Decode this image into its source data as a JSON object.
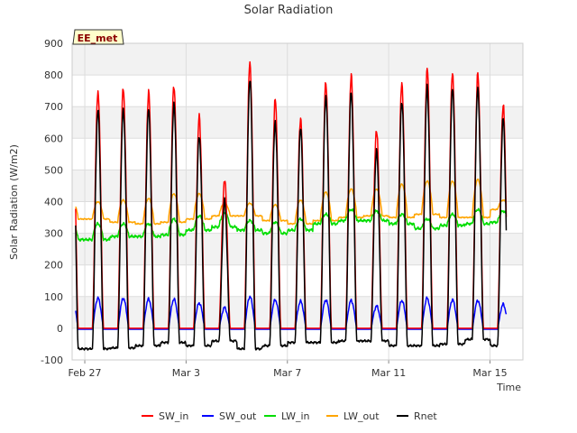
{
  "chart_data": {
    "type": "line",
    "title": "Solar Radiation",
    "xlabel": "Time",
    "ylabel": "Solar Radiation (W/m2)",
    "station_label": "EE_met",
    "xlim_days": [
      -0.5,
      17.3
    ],
    "ylim": [
      -100,
      900
    ],
    "yticks": [
      -100,
      0,
      100,
      200,
      300,
      400,
      500,
      600,
      700,
      800,
      900
    ],
    "xticks": [
      {
        "day": 0,
        "label": "Feb 27"
      },
      {
        "day": 4,
        "label": "Mar 3"
      },
      {
        "day": 8,
        "label": "Mar 7"
      },
      {
        "day": 12,
        "label": "Mar 11"
      },
      {
        "day": 16,
        "label": "Mar 15"
      }
    ],
    "grid": true,
    "legend_position": "bottom",
    "colors": {
      "SW_in": "#ff0000",
      "SW_out": "#0000ff",
      "LW_in": "#00dd00",
      "LW_out": "#ffa500",
      "Rnet": "#000000"
    },
    "series": [
      {
        "name": "SW_in",
        "daily_peak": [
          750,
          755,
          745,
          770,
          665,
          470,
          840,
          720,
          665,
          775,
          795,
          630,
          770,
          820,
          810,
          800,
          705
        ]
      },
      {
        "name": "SW_out",
        "daily_peak": [
          95,
          95,
          92,
          92,
          80,
          65,
          100,
          90,
          85,
          90,
          88,
          70,
          88,
          95,
          90,
          88,
          75
        ]
      },
      {
        "name": "LW_in",
        "night_level": [
          280,
          290,
          290,
          295,
          310,
          320,
          310,
          300,
          310,
          330,
          340,
          340,
          330,
          315,
          325,
          330,
          335
        ],
        "day_level": [
          330,
          330,
          330,
          345,
          355,
          365,
          340,
          335,
          345,
          360,
          375,
          370,
          360,
          345,
          360,
          375,
          370
        ]
      },
      {
        "name": "LW_out",
        "night_level": [
          345,
          335,
          330,
          335,
          345,
          355,
          355,
          340,
          330,
          340,
          350,
          355,
          350,
          360,
          350,
          350,
          375
        ],
        "day_level": [
          400,
          405,
          410,
          425,
          425,
          395,
          395,
          390,
          405,
          430,
          440,
          440,
          455,
          465,
          465,
          470,
          405
        ]
      },
      {
        "name": "Rnet",
        "daily_peak": [
          690,
          695,
          690,
          710,
          610,
          400,
          790,
          650,
          630,
          735,
          745,
          560,
          720,
          760,
          760,
          760,
          660
        ],
        "night_level": [
          -65,
          -62,
          -55,
          -45,
          -55,
          -40,
          -65,
          -55,
          -45,
          -45,
          -40,
          -40,
          -55,
          -55,
          -50,
          -35,
          -55
        ]
      }
    ]
  }
}
